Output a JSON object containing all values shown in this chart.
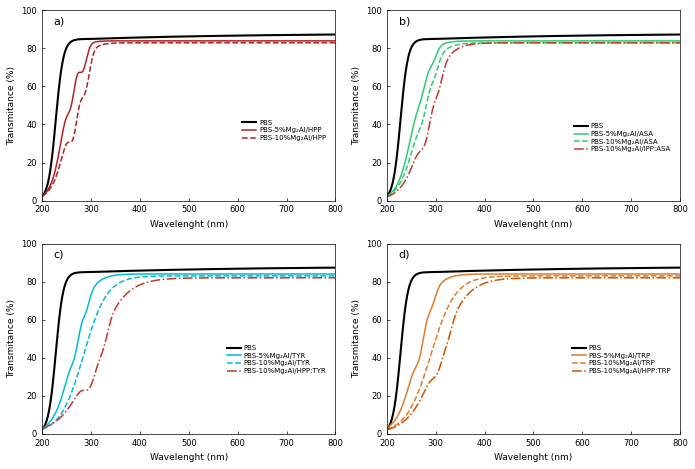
{
  "subplot_labels": [
    "a)",
    "b)",
    "c)",
    "d)"
  ],
  "xlabel": "Wavelenght (nm)",
  "ylabel_a": "Transmitance (%)",
  "ylabel_b": "Transmitance (%)",
  "ylabel_c": "Transmitance (%)",
  "ylabel_d": "Transmitance (%)",
  "xlim": [
    200,
    800
  ],
  "ylim": [
    0,
    100
  ],
  "xticks": [
    200,
    300,
    400,
    500,
    600,
    700,
    800
  ],
  "yticks": [
    0,
    20,
    40,
    60,
    80,
    100
  ],
  "panels": [
    {
      "label": "a)",
      "legend": [
        "PBS",
        "PBS-5%Mg₂Al/HPP",
        "PBS-10%Mg₂Al/HPP"
      ],
      "colors": [
        "#000000",
        "#b22222",
        "#b22222"
      ],
      "linestyles": [
        "-",
        "-",
        "--"
      ],
      "linewidths": [
        1.5,
        1.1,
        1.1
      ]
    },
    {
      "label": "b)",
      "legend": [
        "PBS",
        "PBS-5%Mg₂Al/ASA",
        "PBS-10%Mg₂Al/ASA",
        "PBS-10%Mg₂Al/IPP:ASA"
      ],
      "colors": [
        "#000000",
        "#2ecc71",
        "#2ecc71",
        "#c0392b"
      ],
      "linestyles": [
        "-",
        "-",
        "--",
        "-."
      ],
      "linewidths": [
        1.5,
        1.1,
        1.1,
        1.1
      ]
    },
    {
      "label": "c)",
      "legend": [
        "PBS",
        "PBS-5%Mg₂Al/TYR",
        "PBS-10%Mg₂Al/TYR",
        "PBS-10%Mg₂Al/HPP:TYR"
      ],
      "colors": [
        "#000000",
        "#00bcd4",
        "#00bcd4",
        "#c0392b"
      ],
      "linestyles": [
        "-",
        "-",
        "--",
        "-."
      ],
      "linewidths": [
        1.5,
        1.1,
        1.1,
        1.1
      ]
    },
    {
      "label": "d)",
      "legend": [
        "PBS",
        "PBS-5%Mg₂Al/TRP",
        "PBS-10%Mg₂Al/TRP",
        "PBS-10%Mg₂Al/HPP:TRP"
      ],
      "colors": [
        "#000000",
        "#e07b2a",
        "#e07b2a",
        "#cc5500"
      ],
      "linestyles": [
        "-",
        "-",
        "--",
        "-."
      ],
      "linewidths": [
        1.5,
        1.1,
        1.1,
        1.1
      ]
    }
  ]
}
